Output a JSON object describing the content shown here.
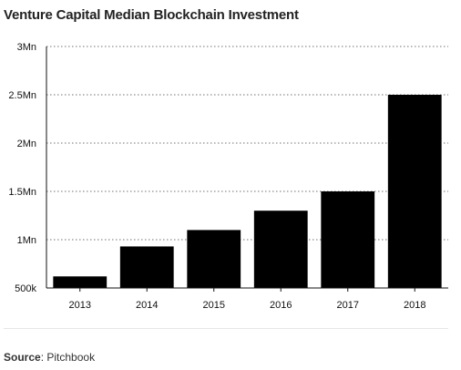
{
  "chart_data": {
    "type": "bar",
    "title": "Venture Capital Median Blockchain Investment",
    "categories": [
      "2013",
      "2014",
      "2015",
      "2016",
      "2017",
      "2018"
    ],
    "values": [
      620000,
      930000,
      1100000,
      1300000,
      1500000,
      2500000
    ],
    "ylim": [
      500000,
      3000000
    ],
    "yticks": [
      {
        "value": 500000,
        "label": "500k"
      },
      {
        "value": 1000000,
        "label": "1Mn"
      },
      {
        "value": 1500000,
        "label": "1.5Mn"
      },
      {
        "value": 2000000,
        "label": "2Mn"
      },
      {
        "value": 2500000,
        "label": "2.5Mn"
      },
      {
        "value": 3000000,
        "label": "3Mn"
      }
    ],
    "grid": true,
    "bar_color": "#000000"
  },
  "footer": {
    "source_label": "Source",
    "source_sep": ":",
    "source_text": " Pitchbook"
  }
}
